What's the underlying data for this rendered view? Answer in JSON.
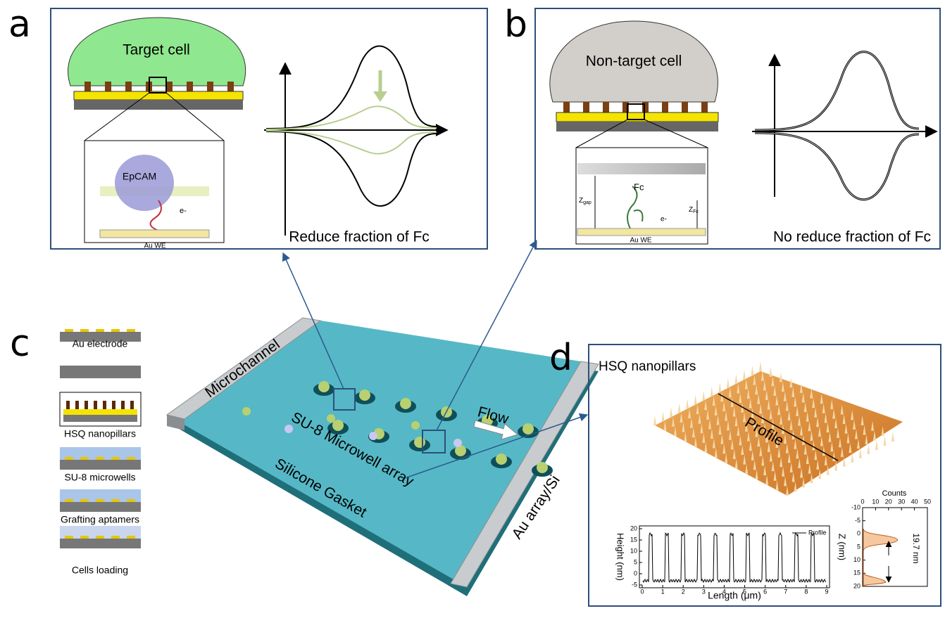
{
  "panels": {
    "a": {
      "label": "a",
      "cell": "Target cell",
      "protein": "EpCAM",
      "electrode": "Au WE",
      "electron": "e-",
      "caption": "Reduce fraction of Fc"
    },
    "b": {
      "label": "b",
      "cell": "Non-target cell",
      "molecule": "Fc",
      "gap": {
        "main": "Z",
        "sub": "gap"
      },
      "zfc": {
        "main": "Z",
        "sub": "Fc"
      },
      "electrode": "Au WE",
      "electron": "e-",
      "caption": "No reduce fraction of Fc"
    },
    "c": {
      "label": "c",
      "steps": [
        "Au electrode",
        "HSQ nanopillars",
        "SU-8 microwells",
        "Grafting aptamers",
        "Cells loading"
      ],
      "device": {
        "channel": "Microchannel",
        "array": "SU-8 Microwell array",
        "gasket": "Silicone Gasket",
        "flow": "Flow",
        "substrate": "Au array/Si"
      }
    },
    "d": {
      "label": "d",
      "title": "HSQ nanopillars",
      "line": "Profile",
      "profile": {
        "ylabel": "Height (nm)",
        "xlabel": "Length (μm)",
        "legend": "Profile",
        "xticks": [
          0,
          1,
          2,
          3,
          4,
          5,
          6,
          7,
          8,
          9
        ],
        "yticks": [
          -5,
          0,
          5,
          10,
          15,
          20
        ]
      },
      "histogram": {
        "xlabel": "Counts",
        "ylabel": "Z (nm)",
        "xticks": [
          0,
          10,
          20,
          30,
          40,
          50
        ],
        "yticks": [
          -10,
          -5,
          0,
          5,
          10,
          15,
          20
        ],
        "annotation": "19.7 nm"
      }
    }
  }
}
